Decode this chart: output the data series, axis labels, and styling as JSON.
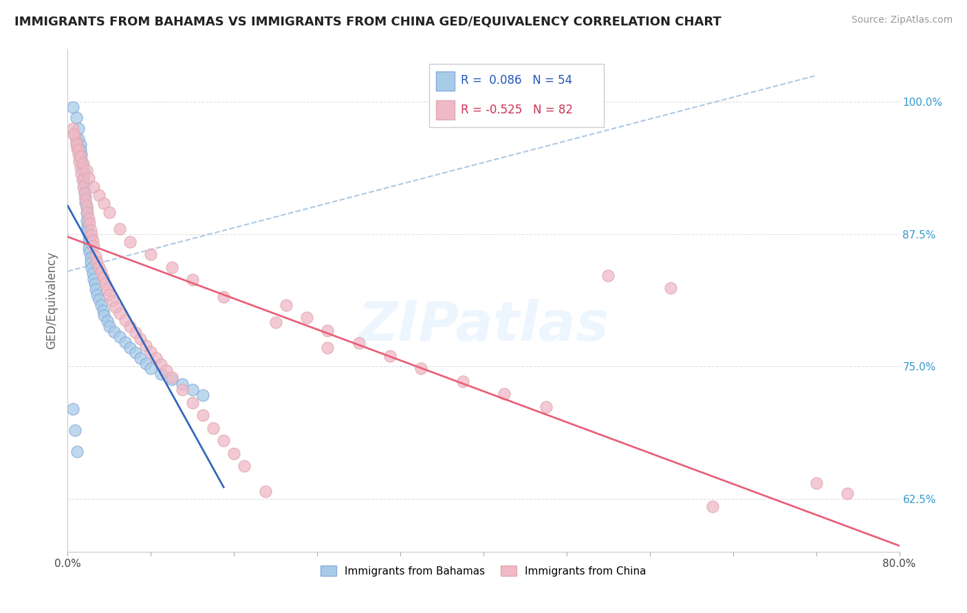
{
  "title": "IMMIGRANTS FROM BAHAMAS VS IMMIGRANTS FROM CHINA GED/EQUIVALENCY CORRELATION CHART",
  "source": "Source: ZipAtlas.com",
  "xlabel_bottom_left": "0.0%",
  "xlabel_bottom_right": "80.0%",
  "ylabel": "GED/Equivalency",
  "ytick_labels": [
    "62.5%",
    "75.0%",
    "87.5%",
    "100.0%"
  ],
  "ytick_values": [
    0.625,
    0.75,
    0.875,
    1.0
  ],
  "xlim": [
    0.0,
    0.8
  ],
  "ylim": [
    0.575,
    1.05
  ],
  "legend_bahamas_label": "Immigrants from Bahamas",
  "legend_china_label": "Immigrants from China",
  "R_bahamas": "0.086",
  "N_bahamas": "54",
  "R_china": "-0.525",
  "N_china": "82",
  "color_bahamas": "#a8cce8",
  "color_china": "#f0b8c8",
  "trendline_bahamas_color": "#3366bb",
  "trendline_china_color": "#e8607a",
  "dashed_line_color": "#99bbdd",
  "background_color": "#ffffff",
  "grid_color": "#dddddd",
  "bahamas_x": [
    0.005,
    0.008,
    0.01,
    0.01,
    0.012,
    0.012,
    0.013,
    0.013,
    0.014,
    0.015,
    0.015,
    0.016,
    0.016,
    0.017,
    0.017,
    0.018,
    0.018,
    0.018,
    0.019,
    0.019,
    0.02,
    0.02,
    0.02,
    0.021,
    0.022,
    0.022,
    0.023,
    0.024,
    0.025,
    0.026,
    0.027,
    0.028,
    0.03,
    0.032,
    0.034,
    0.035,
    0.038,
    0.04,
    0.045,
    0.05,
    0.055,
    0.06,
    0.065,
    0.07,
    0.075,
    0.08,
    0.09,
    0.1,
    0.11,
    0.12,
    0.13,
    0.005,
    0.007,
    0.009
  ],
  "bahamas_y": [
    0.995,
    0.985,
    0.975,
    0.965,
    0.96,
    0.955,
    0.95,
    0.945,
    0.94,
    0.935,
    0.928,
    0.922,
    0.915,
    0.91,
    0.905,
    0.9,
    0.895,
    0.888,
    0.883,
    0.878,
    0.873,
    0.868,
    0.862,
    0.858,
    0.853,
    0.848,
    0.843,
    0.838,
    0.833,
    0.828,
    0.823,
    0.818,
    0.813,
    0.808,
    0.803,
    0.798,
    0.793,
    0.788,
    0.783,
    0.778,
    0.773,
    0.768,
    0.763,
    0.758,
    0.753,
    0.748,
    0.743,
    0.738,
    0.733,
    0.728,
    0.723,
    0.71,
    0.69,
    0.67
  ],
  "china_x": [
    0.005,
    0.007,
    0.008,
    0.009,
    0.01,
    0.011,
    0.012,
    0.013,
    0.014,
    0.015,
    0.016,
    0.017,
    0.018,
    0.019,
    0.02,
    0.021,
    0.022,
    0.023,
    0.024,
    0.025,
    0.027,
    0.028,
    0.03,
    0.032,
    0.034,
    0.036,
    0.038,
    0.04,
    0.043,
    0.046,
    0.05,
    0.055,
    0.06,
    0.065,
    0.07,
    0.075,
    0.08,
    0.085,
    0.09,
    0.095,
    0.1,
    0.11,
    0.12,
    0.13,
    0.14,
    0.15,
    0.16,
    0.17,
    0.19,
    0.21,
    0.23,
    0.25,
    0.28,
    0.31,
    0.34,
    0.38,
    0.42,
    0.46,
    0.52,
    0.58,
    0.006,
    0.008,
    0.01,
    0.012,
    0.015,
    0.018,
    0.02,
    0.025,
    0.03,
    0.035,
    0.04,
    0.05,
    0.06,
    0.08,
    0.1,
    0.12,
    0.15,
    0.2,
    0.25,
    0.72,
    0.75,
    0.62
  ],
  "china_y": [
    0.975,
    0.968,
    0.962,
    0.956,
    0.95,
    0.944,
    0.938,
    0.932,
    0.926,
    0.92,
    0.914,
    0.908,
    0.902,
    0.896,
    0.89,
    0.885,
    0.879,
    0.874,
    0.869,
    0.864,
    0.854,
    0.849,
    0.844,
    0.839,
    0.834,
    0.828,
    0.823,
    0.818,
    0.812,
    0.806,
    0.8,
    0.794,
    0.788,
    0.782,
    0.776,
    0.77,
    0.764,
    0.758,
    0.752,
    0.746,
    0.74,
    0.728,
    0.716,
    0.704,
    0.692,
    0.68,
    0.668,
    0.656,
    0.632,
    0.808,
    0.796,
    0.784,
    0.772,
    0.76,
    0.748,
    0.736,
    0.724,
    0.712,
    0.836,
    0.824,
    0.97,
    0.96,
    0.955,
    0.948,
    0.942,
    0.935,
    0.928,
    0.92,
    0.912,
    0.904,
    0.896,
    0.88,
    0.868,
    0.856,
    0.844,
    0.832,
    0.816,
    0.792,
    0.768,
    0.64,
    0.63,
    0.618
  ]
}
